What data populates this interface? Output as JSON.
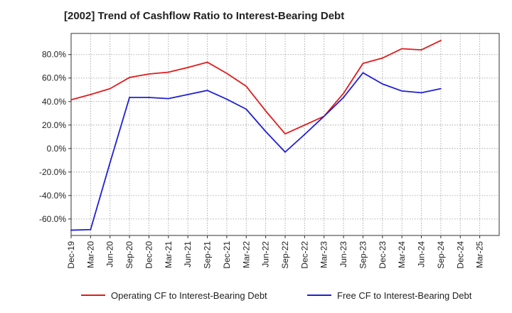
{
  "chart_data": {
    "type": "line",
    "title": "[2002]  Trend of Cashflow Ratio to Interest-Bearing Debt",
    "xlabel": "",
    "ylabel": "",
    "categories": [
      "Dec-19",
      "Mar-20",
      "Jun-20",
      "Sep-20",
      "Dec-20",
      "Mar-21",
      "Jun-21",
      "Sep-21",
      "Dec-21",
      "Mar-22",
      "Jun-22",
      "Sep-22",
      "Dec-22",
      "Mar-23",
      "Jun-23",
      "Sep-23",
      "Dec-23",
      "Mar-24",
      "Jun-24",
      "Sep-24",
      "Dec-24",
      "Mar-25"
    ],
    "y_ticks": [
      -60,
      -40,
      -20,
      0,
      20,
      40,
      60,
      80
    ],
    "y_tick_labels": [
      "-60.0%",
      "-40.0%",
      "-20.0%",
      "0.0%",
      "20.0%",
      "40.0%",
      "60.0%",
      "80.0%"
    ],
    "ylim": [
      -74,
      98
    ],
    "grid": true,
    "legend_position": "bottom",
    "series": [
      {
        "name": "Operating CF to Interest-Bearing Debt",
        "color": "#e31a1c",
        "values": [
          41.5,
          46,
          51,
          60.5,
          63.5,
          65,
          69,
          73.5,
          64,
          53,
          32,
          12.5,
          20,
          27.5,
          47,
          72.5,
          77,
          85,
          84,
          92,
          null,
          null
        ]
      },
      {
        "name": "Free CF to Interest-Bearing Debt",
        "color": "#1f1fd8",
        "values": [
          -69.5,
          -69,
          -12,
          43.5,
          43.5,
          42.5,
          46,
          49.5,
          42,
          33.5,
          14.5,
          -3,
          12,
          27.5,
          43.5,
          64.5,
          55,
          49,
          47.5,
          51,
          null,
          null
        ]
      }
    ]
  }
}
